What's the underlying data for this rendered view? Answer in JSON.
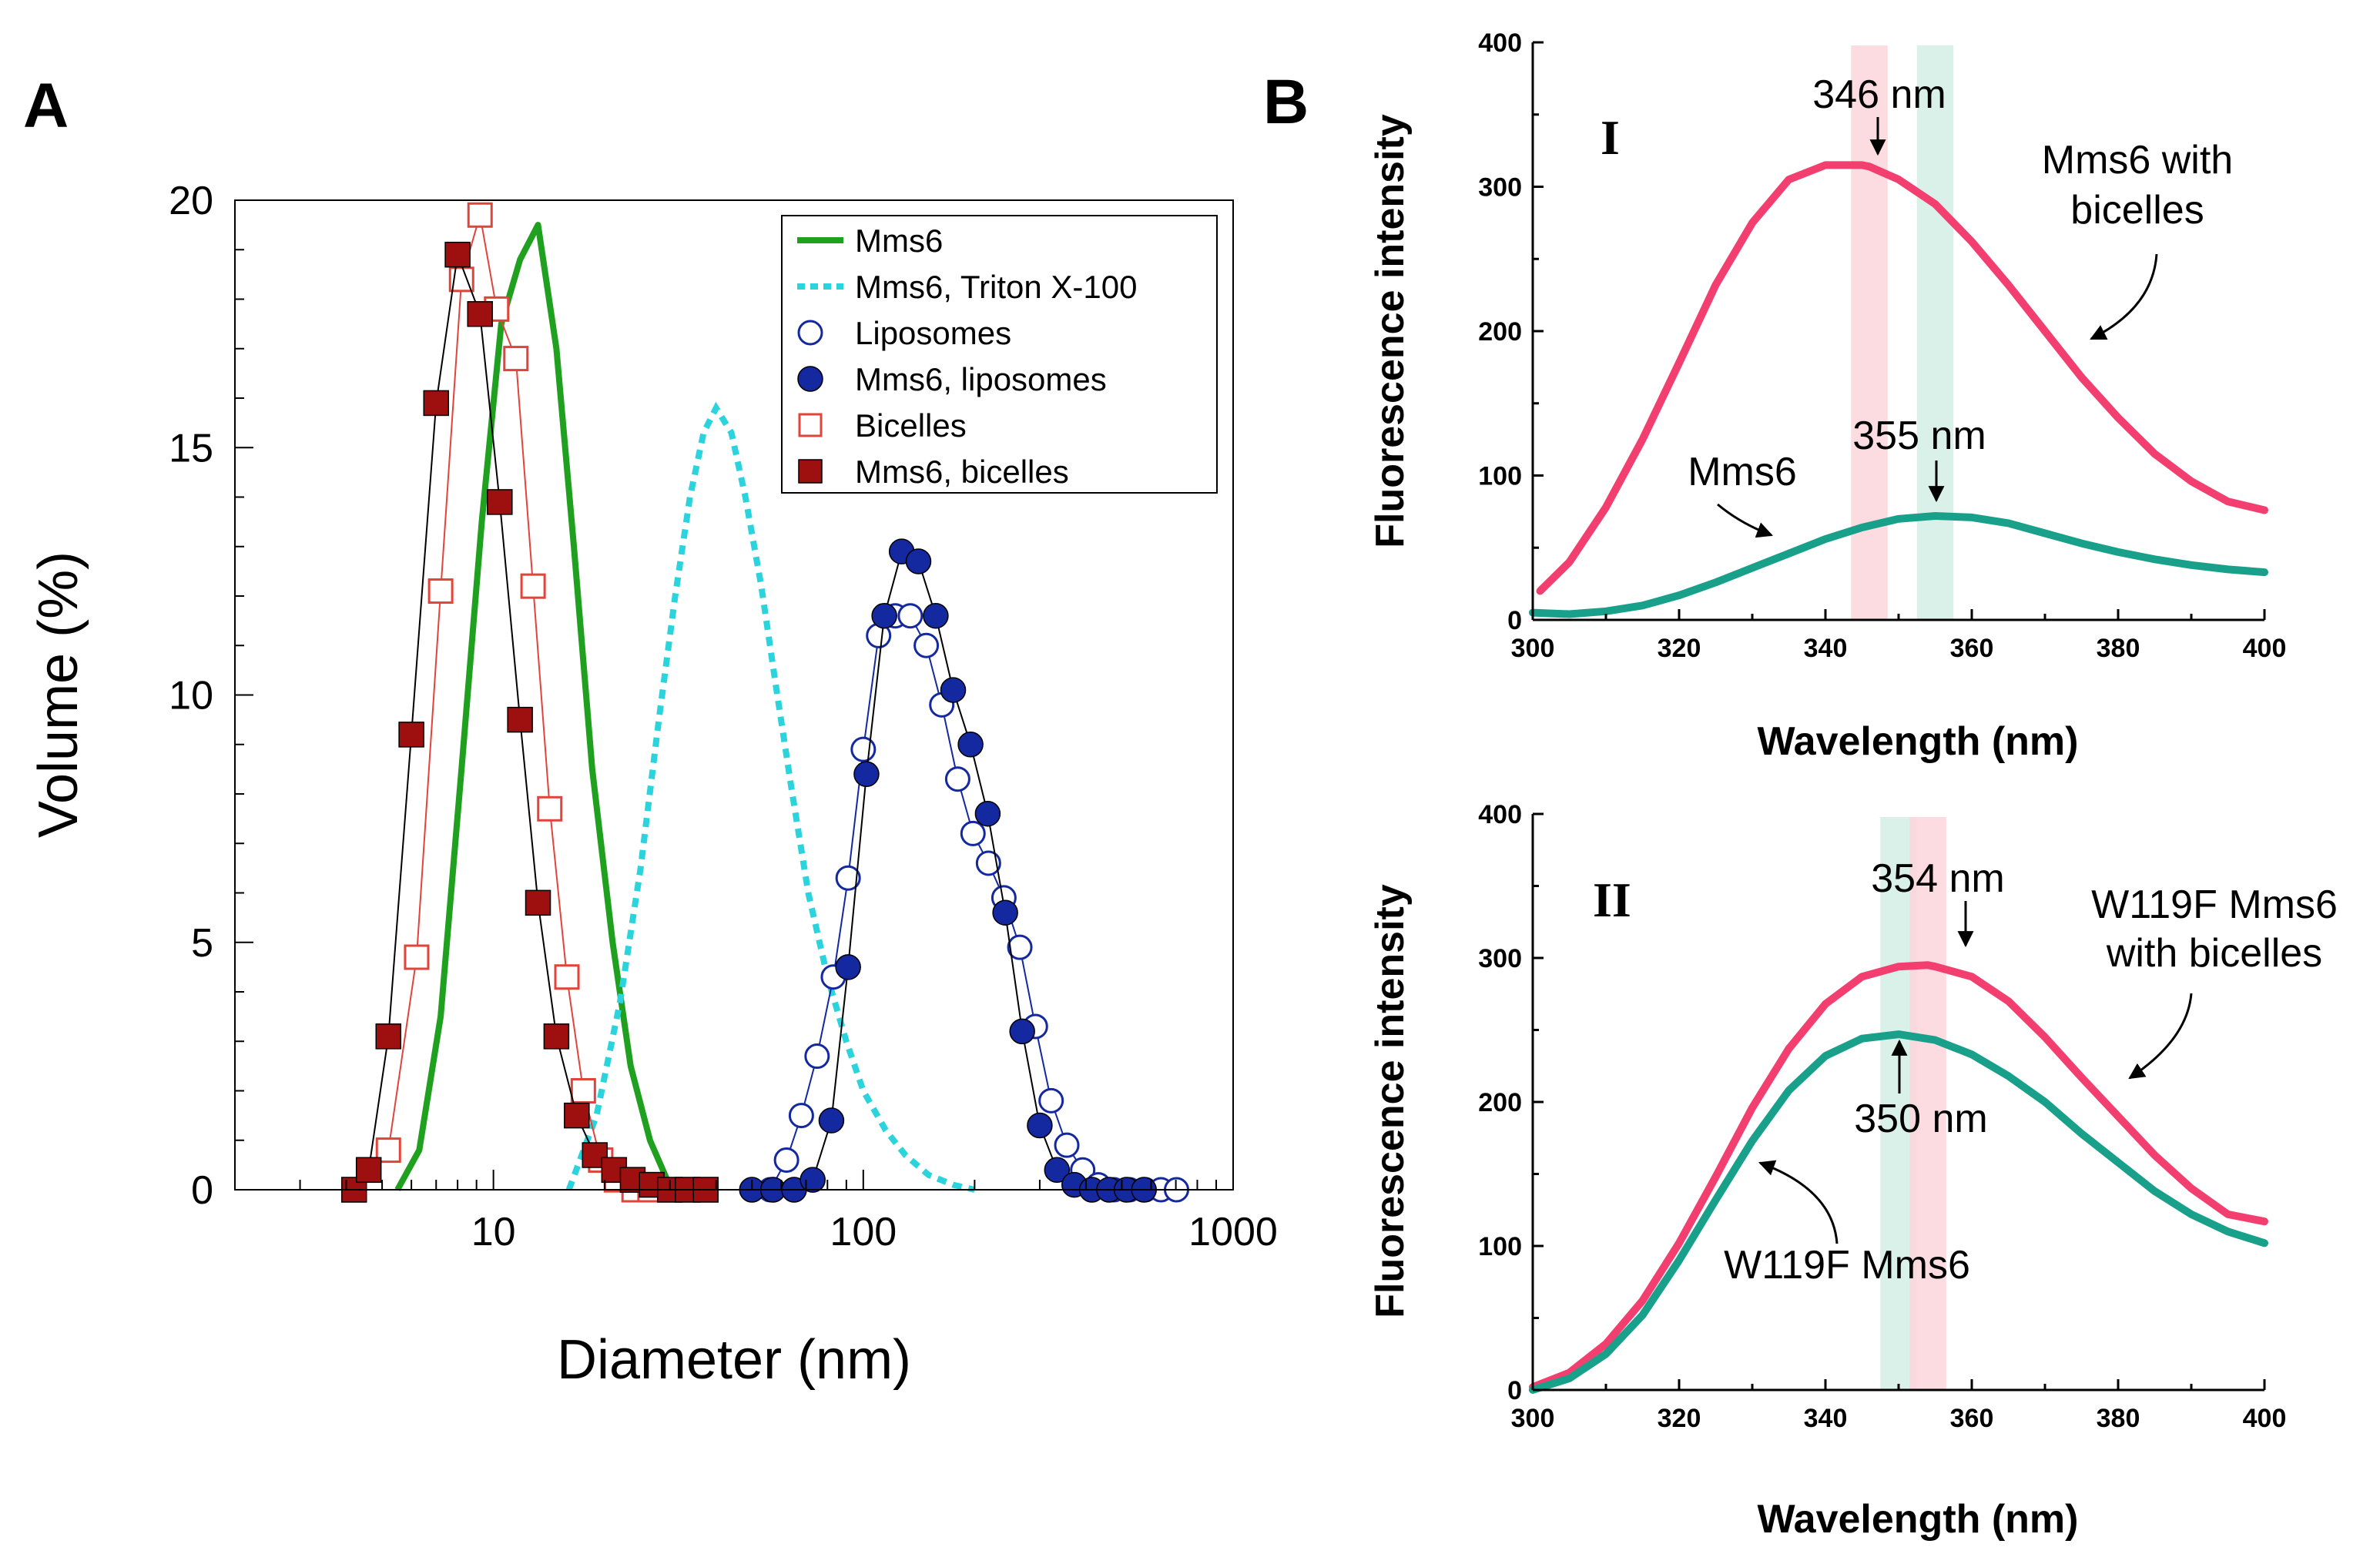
{
  "figure": {
    "panel_a_letter": "A",
    "panel_b_letter": "B"
  },
  "colors": {
    "green": "#1fa01f",
    "cyan": "#2bd4dc",
    "blue": "#1428a0",
    "red": "#9e1010",
    "red_open": "#e0443a",
    "pink": "#f23f70",
    "teal": "#19a08a",
    "pink_band": "#fbd5dc",
    "teal_band": "#d3efe5"
  },
  "chart_data": [
    {
      "id": "A",
      "type": "line",
      "xscale": "log",
      "xlim": [
        2,
        1000
      ],
      "ylim": [
        0,
        20
      ],
      "xlabel": "Diameter (nm)",
      "ylabel": "Volume (%)",
      "x_ticks": [
        10,
        100,
        1000
      ],
      "x_tick_labels": [
        "10",
        "100",
        "1000"
      ],
      "y_ticks": [
        0,
        5,
        10,
        15,
        20
      ],
      "y_tick_labels": [
        "0",
        "5",
        "10",
        "15",
        "20"
      ],
      "legend_position": "top-right",
      "series": [
        {
          "name": "Mms6",
          "style": "solid-line",
          "color": "#1fa01f",
          "x": [
            5.5,
            6.3,
            7.2,
            8.2,
            9.3,
            10.5,
            11.8,
            13.2,
            14.8,
            16.5,
            18.5,
            21,
            23.5,
            26.5,
            29.5,
            33
          ],
          "y": [
            0,
            0.8,
            3.5,
            8.5,
            13.5,
            17.5,
            18.8,
            19.5,
            17,
            13,
            8.5,
            5,
            2.5,
            1,
            0.2,
            0
          ]
        },
        {
          "name": "Mms6, Triton X-100",
          "style": "dashed-line",
          "color": "#2bd4dc",
          "x": [
            16,
            19,
            22,
            25,
            28,
            31,
            34,
            37,
            40,
            44,
            48,
            53,
            58,
            64,
            71,
            80,
            90,
            100,
            115,
            130,
            150,
            175,
            200
          ],
          "y": [
            0,
            1.5,
            3.8,
            6.5,
            9.5,
            12,
            14,
            15.3,
            15.8,
            15.3,
            14,
            12.2,
            10.2,
            8.1,
            6,
            4.3,
            3,
            2,
            1.2,
            0.7,
            0.3,
            0.1,
            0
          ]
        },
        {
          "name": "Liposomes",
          "style": "open-circle",
          "color": "#1428a0",
          "x": [
            50,
            56,
            62,
            68,
            75,
            83,
            91,
            100,
            110,
            122,
            134,
            148,
            163,
            180,
            198,
            218,
            240,
            265,
            292,
            322,
            355,
            392,
            432,
            476,
            525,
            579,
            638,
            703
          ],
          "y": [
            0,
            0,
            0.6,
            1.5,
            2.7,
            4.3,
            6.3,
            8.9,
            11.2,
            11.6,
            11.6,
            11,
            9.8,
            8.3,
            7.2,
            6.6,
            5.9,
            4.9,
            3.3,
            1.8,
            0.9,
            0.4,
            0.1,
            0,
            0,
            0,
            0,
            0
          ]
        },
        {
          "name": "Mms6, liposomes",
          "style": "filled-circle",
          "color": "#1428a0",
          "x": [
            50,
            57,
            65,
            73,
            82,
            91,
            102,
            114,
            127,
            141,
            157,
            175,
            195,
            217,
            242,
            269,
            300,
            334,
            372,
            415,
            462,
            515,
            574
          ],
          "y": [
            0,
            0,
            0,
            0.2,
            1.4,
            4.5,
            8.4,
            11.6,
            12.9,
            12.7,
            11.6,
            10.1,
            9,
            7.6,
            5.6,
            3.2,
            1.3,
            0.4,
            0.1,
            0,
            0,
            0,
            0
          ]
        },
        {
          "name": "Bicelles",
          "style": "open-square",
          "color": "#e0443a",
          "x": [
            4.2,
            5.2,
            6.2,
            7.2,
            8.2,
            9.2,
            10.2,
            11.5,
            12.8,
            14.2,
            15.8,
            17.5,
            19.5,
            21.5,
            24,
            26.5
          ],
          "y": [
            0,
            0.8,
            4.7,
            12.1,
            18.4,
            19.7,
            17.8,
            16.8,
            12.2,
            7.7,
            4.3,
            2.0,
            0.6,
            0.2,
            0,
            0
          ]
        },
        {
          "name": "Mms6, bicelles",
          "style": "filled-square",
          "color": "#9e1010",
          "x": [
            4.2,
            4.6,
            5.2,
            6.0,
            7.0,
            8.0,
            9.2,
            10.4,
            11.8,
            13.2,
            14.8,
            16.8,
            18.8,
            21.2,
            23.8,
            26.8,
            30,
            33.5,
            37.5
          ],
          "y": [
            0,
            0.4,
            3.1,
            9.2,
            15.9,
            18.9,
            17.7,
            13.9,
            9.5,
            5.8,
            3.1,
            1.5,
            0.7,
            0.4,
            0.2,
            0.1,
            0,
            0,
            0
          ]
        }
      ]
    },
    {
      "id": "B-I",
      "type": "line",
      "roman": "I",
      "xlim": [
        300,
        400
      ],
      "ylim": [
        0,
        400
      ],
      "xlabel": "Wavelength (nm)",
      "ylabel": "Fluorescence intensity",
      "x_ticks": [
        300,
        320,
        340,
        360,
        380,
        400
      ],
      "x_tick_labels": [
        "300",
        "320",
        "340",
        "360",
        "380",
        "400"
      ],
      "y_ticks": [
        0,
        100,
        200,
        300,
        400
      ],
      "y_tick_labels": [
        "0",
        "100",
        "200",
        "300",
        "400"
      ],
      "bands": [
        {
          "from": 343.5,
          "to": 348.5,
          "color": "#fbd5dc"
        },
        {
          "from": 352.5,
          "to": 357.5,
          "color": "#d3efe5"
        }
      ],
      "series": [
        {
          "name": "Mms6 with bicelles",
          "color": "#f23f70",
          "x": [
            301,
            305,
            310,
            315,
            320,
            325,
            330,
            335,
            340,
            345,
            346,
            350,
            355,
            360,
            365,
            370,
            375,
            380,
            385,
            390,
            395,
            400
          ],
          "y": [
            20,
            40,
            78,
            125,
            178,
            232,
            275,
            305,
            315,
            315,
            314,
            305,
            288,
            262,
            232,
            200,
            168,
            140,
            115,
            96,
            82,
            76
          ]
        },
        {
          "name": "Mms6",
          "color": "#19a08a",
          "x": [
            300,
            305,
            310,
            315,
            320,
            325,
            330,
            335,
            340,
            345,
            350,
            355,
            360,
            365,
            370,
            375,
            380,
            385,
            390,
            395,
            400
          ],
          "y": [
            5,
            4,
            6,
            10,
            17,
            26,
            36,
            46,
            56,
            64,
            70,
            72,
            71,
            67,
            60,
            53,
            47,
            42,
            38,
            35,
            33
          ]
        }
      ],
      "annotations": [
        {
          "text": "346 nm",
          "x": 346
        },
        {
          "text": "355 nm",
          "x": 355
        },
        {
          "text": "Mms6 with bicelles"
        },
        {
          "text": "Mms6"
        }
      ]
    },
    {
      "id": "B-II",
      "type": "line",
      "roman": "II",
      "xlim": [
        300,
        400
      ],
      "ylim": [
        0,
        400
      ],
      "xlabel": "Wavelength (nm)",
      "ylabel": "Fluorescence intensity",
      "x_ticks": [
        300,
        320,
        340,
        360,
        380,
        400
      ],
      "x_tick_labels": [
        "300",
        "320",
        "340",
        "360",
        "380",
        "400"
      ],
      "y_ticks": [
        0,
        100,
        200,
        300,
        400
      ],
      "y_tick_labels": [
        "0",
        "100",
        "200",
        "300",
        "400"
      ],
      "bands": [
        {
          "from": 347.5,
          "to": 352.5,
          "color": "#d3efe5"
        },
        {
          "from": 351.5,
          "to": 356.5,
          "color": "#fbd5dc"
        }
      ],
      "series": [
        {
          "name": "W119F Mms6 with bicelles",
          "color": "#f23f70",
          "x": [
            300,
            305,
            310,
            315,
            320,
            325,
            330,
            335,
            340,
            345,
            350,
            354,
            355,
            360,
            365,
            370,
            375,
            380,
            385,
            390,
            395,
            400
          ],
          "y": [
            2,
            12,
            32,
            62,
            102,
            148,
            196,
            237,
            268,
            287,
            294,
            295,
            294,
            287,
            270,
            245,
            217,
            190,
            163,
            140,
            122,
            117
          ]
        },
        {
          "name": "W119F Mms6",
          "color": "#19a08a",
          "x": [
            300,
            305,
            310,
            315,
            320,
            325,
            330,
            335,
            340,
            345,
            350,
            355,
            360,
            365,
            370,
            375,
            380,
            385,
            390,
            395,
            400
          ],
          "y": [
            0,
            8,
            25,
            52,
            90,
            132,
            173,
            208,
            232,
            244,
            247,
            243,
            233,
            218,
            200,
            178,
            158,
            138,
            122,
            110,
            102
          ]
        }
      ],
      "annotations": [
        {
          "text": "354 nm",
          "x": 354
        },
        {
          "text": "350 nm",
          "x": 350
        },
        {
          "text": "W119F Mms6 with bicelles"
        },
        {
          "text": "W119F Mms6"
        }
      ]
    }
  ],
  "panel_b_texts": {
    "i_annot_346": "346 nm",
    "i_annot_355": "355 nm",
    "i_label_pink_l1": "Mms6 with",
    "i_label_pink_l2": "bicelles",
    "i_label_teal": "Mms6",
    "ii_annot_354": "354 nm",
    "ii_annot_350": "350 nm",
    "ii_label_pink_l1": "W119F Mms6",
    "ii_label_pink_l2": "with bicelles",
    "ii_label_teal": "W119F Mms6"
  }
}
